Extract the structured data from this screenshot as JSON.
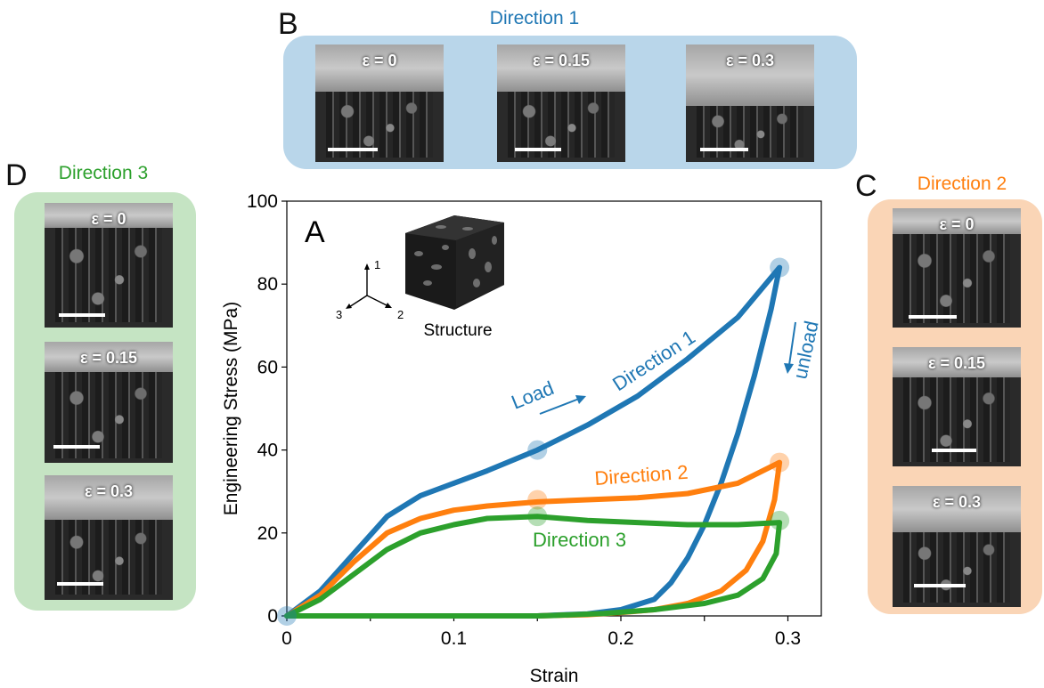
{
  "panels": {
    "a": "A",
    "b": "B",
    "c": "C",
    "d": "D"
  },
  "direction1": {
    "title": "Direction 1",
    "strains": [
      "ε = 0",
      "ε = 0.15",
      "ε = 0.3"
    ]
  },
  "direction2": {
    "title": "Direction 2",
    "strains": [
      "ε = 0",
      "ε = 0.15",
      "ε = 0.3"
    ]
  },
  "direction3": {
    "title": "Direction 3",
    "strains": [
      "ε = 0",
      "ε = 0.15",
      "ε = 0.3"
    ]
  },
  "inset": {
    "structure_label": "Structure",
    "axes": [
      "1",
      "2",
      "3"
    ]
  },
  "annotations": {
    "load": "Load",
    "unload": "unload",
    "direction1": "Direction 1",
    "direction2": "Direction 2",
    "direction3": "Direction 3"
  },
  "colors": {
    "direction1": "#1f77b4",
    "direction2": "#ff7f0e",
    "direction3": "#2ca02c",
    "box1": "#b9d6ea",
    "box2": "#fad5b6",
    "box3": "#c5e4c3"
  },
  "chart_data": {
    "type": "line",
    "title": "",
    "xlabel": "Strain",
    "ylabel": "Engineering Stress (MPa)",
    "xlim": [
      0,
      0.32
    ],
    "ylim": [
      0,
      100
    ],
    "xticks": [
      0,
      0.05,
      0.1,
      0.15,
      0.2,
      0.25,
      0.3
    ],
    "xtick_labels": [
      "0",
      "",
      "0.1",
      "",
      "0.2",
      "",
      "0.3"
    ],
    "yticks": [
      0,
      20,
      40,
      60,
      80,
      100
    ],
    "ytick_labels": [
      "0",
      "20",
      "40",
      "60",
      "80",
      "100"
    ],
    "grid": false,
    "series": [
      {
        "name": "Direction 1",
        "color": "#1f77b4",
        "x": [
          0,
          0.02,
          0.04,
          0.06,
          0.08,
          0.1,
          0.12,
          0.15,
          0.18,
          0.21,
          0.24,
          0.27,
          0.295,
          0.29,
          0.28,
          0.27,
          0.26,
          0.25,
          0.24,
          0.23,
          0.22,
          0.2,
          0.18,
          0.16,
          0.15,
          0.1,
          0.05,
          0
        ],
        "y": [
          0,
          6,
          15,
          24,
          29,
          32,
          35,
          40,
          46,
          53,
          62,
          72,
          84,
          74,
          58,
          44,
          32,
          22,
          14,
          8,
          4,
          1.5,
          0.5,
          0.2,
          0,
          0,
          0,
          0
        ]
      },
      {
        "name": "Direction 2",
        "color": "#ff7f0e",
        "x": [
          0,
          0.02,
          0.04,
          0.06,
          0.08,
          0.1,
          0.12,
          0.15,
          0.18,
          0.21,
          0.24,
          0.27,
          0.295,
          0.292,
          0.285,
          0.275,
          0.26,
          0.24,
          0.22,
          0.2,
          0.18,
          0.16,
          0.15,
          0.1,
          0.05,
          0
        ],
        "y": [
          0,
          5,
          13,
          20,
          23.5,
          25.5,
          26.5,
          27.5,
          28,
          28.5,
          29.5,
          32,
          37,
          28,
          18,
          11,
          6,
          3,
          1.5,
          0.8,
          0.3,
          0.1,
          0,
          0,
          0,
          0
        ]
      },
      {
        "name": "Direction 3",
        "color": "#2ca02c",
        "x": [
          0,
          0.02,
          0.04,
          0.06,
          0.08,
          0.1,
          0.12,
          0.15,
          0.18,
          0.21,
          0.24,
          0.27,
          0.295,
          0.293,
          0.285,
          0.27,
          0.25,
          0.22,
          0.19,
          0.16,
          0.15,
          0.1,
          0.05,
          0
        ],
        "y": [
          0,
          4,
          10,
          16,
          20,
          22,
          23.5,
          24,
          23,
          22.5,
          22,
          22,
          22.5,
          15,
          9,
          5,
          3,
          1.5,
          0.6,
          0.1,
          0,
          0,
          0,
          0
        ]
      }
    ],
    "markers": [
      {
        "series": "Direction 1",
        "x": [
          0,
          0.15,
          0.295
        ],
        "y": [
          0,
          40,
          84
        ]
      },
      {
        "series": "Direction 2",
        "x": [
          0.15,
          0.295
        ],
        "y": [
          28,
          37
        ]
      },
      {
        "series": "Direction 3",
        "x": [
          0.15,
          0.295
        ],
        "y": [
          24,
          23
        ]
      }
    ]
  }
}
